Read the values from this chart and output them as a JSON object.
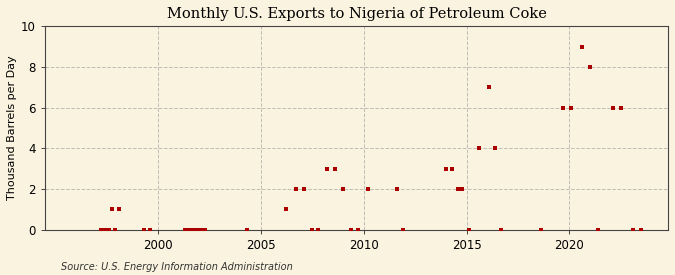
{
  "title": "Monthly U.S. Exports to Nigeria of Petroleum Coke",
  "ylabel": "Thousand Barrels per Day",
  "source": "Source: U.S. Energy Information Administration",
  "xlim": [
    1994.5,
    2024.8
  ],
  "ylim": [
    0,
    10
  ],
  "yticks": [
    0,
    2,
    4,
    6,
    8,
    10
  ],
  "xticks": [
    2000,
    2005,
    2010,
    2015,
    2020
  ],
  "background_color": "#faf3e0",
  "plot_bg_color": "#faf3e0",
  "marker_color": "#aa0000",
  "grid_color": "#999999",
  "data_points": [
    [
      1997.75,
      1
    ],
    [
      1998.1,
      1
    ],
    [
      1997.2,
      0
    ],
    [
      1997.4,
      0
    ],
    [
      1997.6,
      0
    ],
    [
      1997.9,
      0
    ],
    [
      1999.3,
      0
    ],
    [
      1999.6,
      0
    ],
    [
      2001.3,
      0
    ],
    [
      2001.5,
      0
    ],
    [
      2001.7,
      0
    ],
    [
      2001.9,
      0
    ],
    [
      2002.1,
      0
    ],
    [
      2002.3,
      0
    ],
    [
      2004.3,
      0
    ],
    [
      2006.2,
      1
    ],
    [
      2006.7,
      2
    ],
    [
      2007.1,
      2
    ],
    [
      2007.5,
      0
    ],
    [
      2007.8,
      0
    ],
    [
      2008.2,
      3
    ],
    [
      2008.6,
      3
    ],
    [
      2009.0,
      2
    ],
    [
      2009.4,
      0
    ],
    [
      2009.7,
      0
    ],
    [
      2010.2,
      2
    ],
    [
      2011.6,
      2
    ],
    [
      2011.9,
      0
    ],
    [
      2014.0,
      3
    ],
    [
      2014.3,
      3
    ],
    [
      2014.6,
      2
    ],
    [
      2014.8,
      2
    ],
    [
      2015.1,
      0
    ],
    [
      2015.6,
      4
    ],
    [
      2016.1,
      7
    ],
    [
      2016.4,
      4
    ],
    [
      2016.7,
      0
    ],
    [
      2018.6,
      0
    ],
    [
      2019.7,
      6
    ],
    [
      2020.1,
      6
    ],
    [
      2020.6,
      9
    ],
    [
      2021.0,
      8
    ],
    [
      2021.4,
      0
    ],
    [
      2022.1,
      6
    ],
    [
      2022.5,
      6
    ],
    [
      2023.1,
      0
    ],
    [
      2023.5,
      0
    ]
  ]
}
